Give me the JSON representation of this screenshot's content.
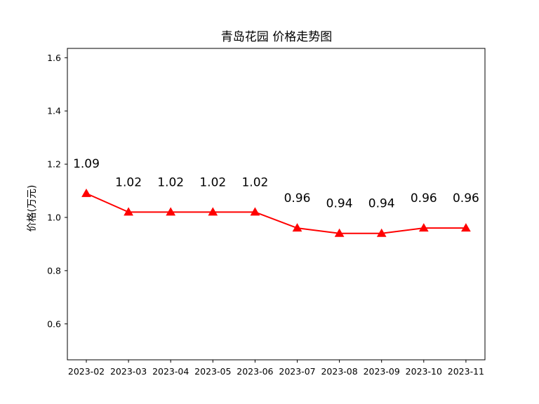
{
  "chart_data": {
    "type": "line",
    "title": "青岛花园 价格走势图",
    "xlabel": "",
    "ylabel": "价格(万元)",
    "categories": [
      "2023-02",
      "2023-03",
      "2023-04",
      "2023-05",
      "2023-06",
      "2023-07",
      "2023-08",
      "2023-09",
      "2023-10",
      "2023-11"
    ],
    "series": [
      {
        "values": [
          1.09,
          1.02,
          1.02,
          1.02,
          1.02,
          0.96,
          0.94,
          0.94,
          0.96,
          0.96
        ]
      }
    ],
    "data_labels": [
      "1.09",
      "1.02",
      "1.02",
      "1.02",
      "1.02",
      "0.96",
      "0.94",
      "0.94",
      "0.96",
      "0.96"
    ],
    "ylim": [
      0.465,
      1.635
    ],
    "yticks": [
      0.6,
      0.8,
      1.0,
      1.2,
      1.4,
      1.6
    ],
    "ytick_labels": [
      "0.6",
      "0.8",
      "1.0",
      "1.2",
      "1.4",
      "1.6"
    ],
    "line_color": "#ff0000",
    "marker": "triangle",
    "grid": false,
    "legend": "none"
  }
}
